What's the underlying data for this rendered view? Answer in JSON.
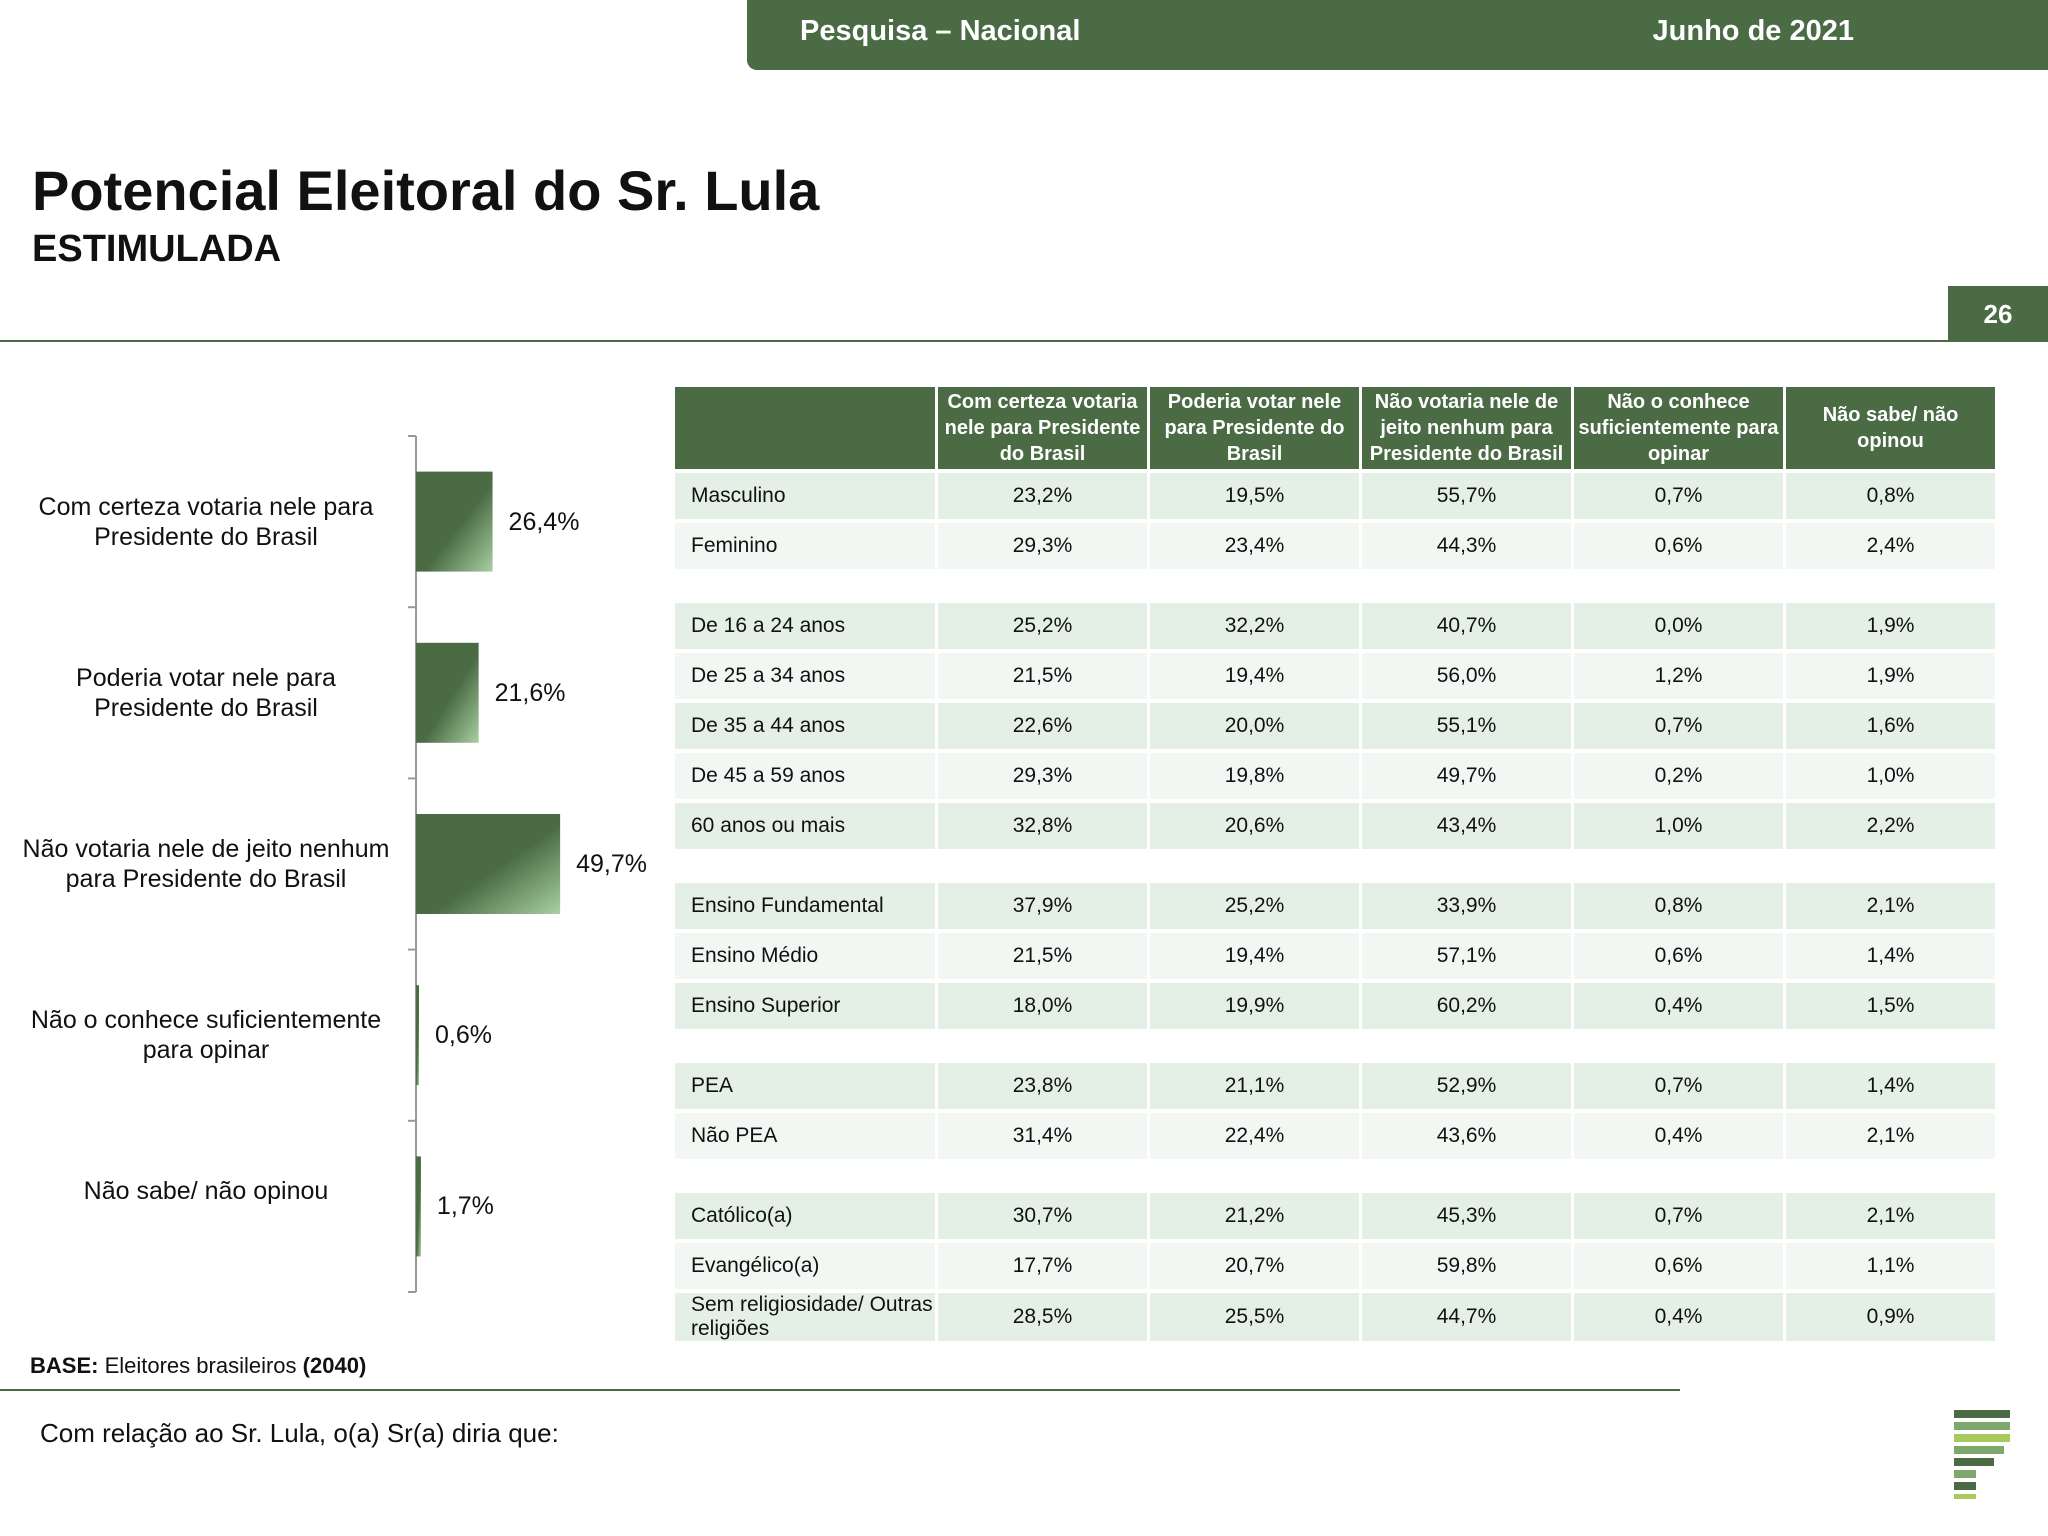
{
  "header": {
    "left": "Pesquisa – Nacional",
    "right": "Junho de 2021"
  },
  "title": "Potencial Eleitoral do Sr. Lula",
  "subtitle": "ESTIMULADA",
  "page_number": "26",
  "colors": {
    "brand": "#4a6b44",
    "row_alt": "#e4f0e6",
    "row_plain": "#f3f7f3"
  },
  "chart_data": {
    "type": "bar",
    "orientation": "horizontal",
    "categories": [
      "Com certeza votaria nele para Presidente do Brasil",
      "Poderia votar nele para Presidente do Brasil",
      "Não votaria nele de jeito nenhum para Presidente do Brasil",
      "Não o conhece suficientemente para opinar",
      "Não sabe/ não opinou"
    ],
    "values": [
      26.4,
      21.6,
      49.7,
      0.6,
      1.7
    ],
    "value_labels": [
      "26,4%",
      "21,6%",
      "49,7%",
      "0,6%",
      "1,7%"
    ],
    "xlim": [
      0,
      100
    ]
  },
  "table": {
    "columns": [
      "Com certeza votaria nele para Presidente do Brasil",
      "Poderia votar nele para Presidente do Brasil",
      "Não votaria nele de jeito nenhum para Presidente do Brasil",
      "Não o conhece suficientemente para opinar",
      "Não sabe/ não opinou"
    ],
    "groups": [
      {
        "rows": [
          {
            "label": "Masculino",
            "values": [
              "23,2%",
              "19,5%",
              "55,7%",
              "0,7%",
              "0,8%"
            ]
          },
          {
            "label": "Feminino",
            "values": [
              "29,3%",
              "23,4%",
              "44,3%",
              "0,6%",
              "2,4%"
            ]
          }
        ]
      },
      {
        "rows": [
          {
            "label": "De 16 a 24 anos",
            "values": [
              "25,2%",
              "32,2%",
              "40,7%",
              "0,0%",
              "1,9%"
            ]
          },
          {
            "label": "De 25 a 34 anos",
            "values": [
              "21,5%",
              "19,4%",
              "56,0%",
              "1,2%",
              "1,9%"
            ]
          },
          {
            "label": "De 35 a 44 anos",
            "values": [
              "22,6%",
              "20,0%",
              "55,1%",
              "0,7%",
              "1,6%"
            ]
          },
          {
            "label": "De 45 a 59 anos",
            "values": [
              "29,3%",
              "19,8%",
              "49,7%",
              "0,2%",
              "1,0%"
            ]
          },
          {
            "label": "60 anos ou mais",
            "values": [
              "32,8%",
              "20,6%",
              "43,4%",
              "1,0%",
              "2,2%"
            ]
          }
        ]
      },
      {
        "rows": [
          {
            "label": "Ensino Fundamental",
            "values": [
              "37,9%",
              "25,2%",
              "33,9%",
              "0,8%",
              "2,1%"
            ]
          },
          {
            "label": "Ensino Médio",
            "values": [
              "21,5%",
              "19,4%",
              "57,1%",
              "0,6%",
              "1,4%"
            ]
          },
          {
            "label": "Ensino Superior",
            "values": [
              "18,0%",
              "19,9%",
              "60,2%",
              "0,4%",
              "1,5%"
            ]
          }
        ]
      },
      {
        "rows": [
          {
            "label": "PEA",
            "values": [
              "23,8%",
              "21,1%",
              "52,9%",
              "0,7%",
              "1,4%"
            ]
          },
          {
            "label": "Não PEA",
            "values": [
              "31,4%",
              "22,4%",
              "43,6%",
              "0,4%",
              "2,1%"
            ]
          }
        ]
      },
      {
        "rows": [
          {
            "label": "Católico(a)",
            "values": [
              "30,7%",
              "21,2%",
              "45,3%",
              "0,7%",
              "2,1%"
            ]
          },
          {
            "label": "Evangélico(a)",
            "values": [
              "17,7%",
              "20,7%",
              "59,8%",
              "0,6%",
              "1,1%"
            ]
          },
          {
            "label": "Sem religiosidade/ Outras religiões",
            "values": [
              "28,5%",
              "25,5%",
              "44,7%",
              "0,4%",
              "0,9%"
            ]
          }
        ]
      }
    ]
  },
  "base": {
    "label": "BASE:",
    "text": "Eleitores brasileiros",
    "n": "(2040)"
  },
  "question": "Com relação ao Sr. Lula, o(a) Sr(a) diria que:"
}
